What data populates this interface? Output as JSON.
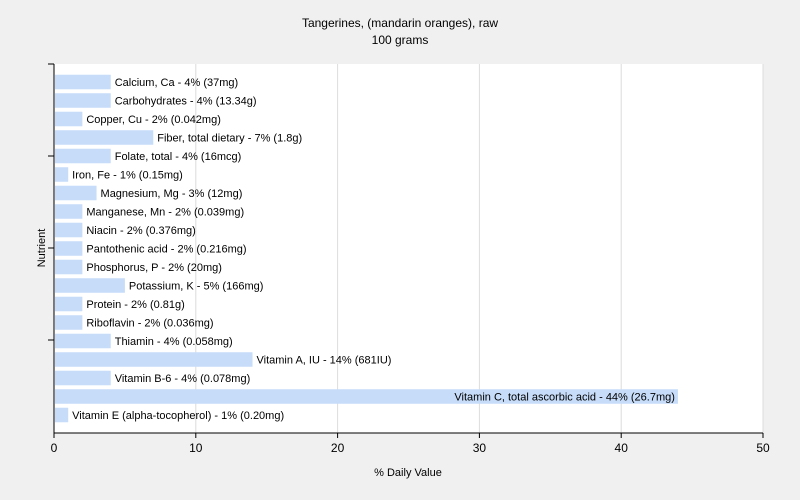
{
  "chart_data": {
    "type": "bar",
    "orientation": "horizontal",
    "title": "Tangerines, (mandarin oranges), raw",
    "subtitle": "100 grams",
    "xlabel": "% Daily Value",
    "ylabel": "Nutrient",
    "xlim": [
      0,
      50
    ],
    "xticks": [
      0,
      10,
      20,
      30,
      40,
      50
    ],
    "grid": true,
    "bar_color": "#c6dcf8",
    "categories": [
      "Calcium, Ca",
      "Carbohydrates",
      "Copper, Cu",
      "Fiber, total dietary",
      "Folate, total",
      "Iron, Fe",
      "Magnesium, Mg",
      "Manganese, Mn",
      "Niacin",
      "Pantothenic acid",
      "Phosphorus, P",
      "Potassium, K",
      "Protein",
      "Riboflavin",
      "Thiamin",
      "Vitamin A, IU",
      "Vitamin B-6",
      "Vitamin C, total ascorbic acid",
      "Vitamin E (alpha-tocopherol)"
    ],
    "values": [
      4,
      4,
      2,
      7,
      4,
      1,
      3,
      2,
      2,
      2,
      2,
      5,
      2,
      2,
      4,
      14,
      4,
      44,
      1
    ],
    "data_labels": [
      "Calcium, Ca - 4% (37mg)",
      "Carbohydrates - 4% (13.34g)",
      "Copper, Cu - 2% (0.042mg)",
      "Fiber, total dietary - 7% (1.8g)",
      "Folate, total - 4% (16mcg)",
      "Iron, Fe - 1% (0.15mg)",
      "Magnesium, Mg - 3% (12mg)",
      "Manganese, Mn - 2% (0.039mg)",
      "Niacin - 2% (0.376mg)",
      "Pantothenic acid - 2% (0.216mg)",
      "Phosphorus, P - 2% (20mg)",
      "Potassium, K - 5% (166mg)",
      "Protein - 2% (0.81g)",
      "Riboflavin - 2% (0.036mg)",
      "Thiamin - 4% (0.058mg)",
      "Vitamin A, IU - 14% (681IU)",
      "Vitamin B-6 - 4% (0.078mg)",
      "Vitamin C, total ascorbic acid - 44% (26.7mg)",
      "Vitamin E (alpha-tocopherol) - 1% (0.20mg)"
    ]
  }
}
